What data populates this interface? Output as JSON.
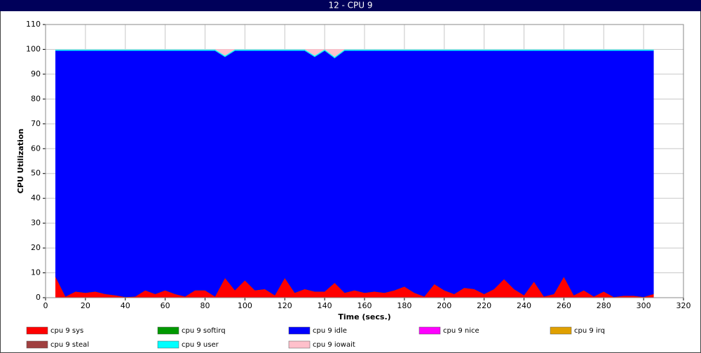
{
  "chart_data": {
    "type": "stacked-area",
    "title": "12 - CPU 9",
    "x_label": "Time (secs.)",
    "y_label": "CPU Utilization",
    "xlim": [
      0,
      320
    ],
    "xticks": [
      0,
      20,
      40,
      60,
      80,
      100,
      120,
      140,
      160,
      180,
      200,
      220,
      240,
      260,
      280,
      300,
      320
    ],
    "ylim": [
      0,
      110
    ],
    "yticks": [
      0,
      10,
      20,
      30,
      40,
      50,
      60,
      70,
      80,
      90,
      100,
      110
    ],
    "grid": true,
    "x": [
      5,
      10,
      15,
      20,
      25,
      30,
      35,
      40,
      45,
      50,
      55,
      60,
      65,
      70,
      75,
      80,
      85,
      90,
      95,
      100,
      105,
      110,
      115,
      120,
      125,
      130,
      135,
      140,
      145,
      150,
      155,
      160,
      165,
      170,
      175,
      180,
      185,
      190,
      195,
      200,
      205,
      210,
      215,
      220,
      225,
      230,
      235,
      240,
      245,
      250,
      255,
      260,
      265,
      270,
      275,
      280,
      285,
      290,
      295,
      300,
      305
    ],
    "series": [
      {
        "name": "cpu 9 sys",
        "color": "#ff0000",
        "values": [
          8.5,
          0.5,
          2.5,
          2,
          2.5,
          1.5,
          1,
          0.3,
          0.5,
          3,
          1.5,
          3,
          1.5,
          0.5,
          3,
          3,
          0.5,
          8,
          3,
          7,
          3,
          3.5,
          1,
          8,
          2,
          3.5,
          2.5,
          2.5,
          6,
          2,
          3,
          2,
          2.5,
          2,
          3,
          4.5,
          2,
          0.5,
          5.5,
          3,
          1.5,
          4,
          3.5,
          1.5,
          3.5,
          7.5,
          3.5,
          1,
          6.5,
          0.5,
          1.5,
          8.5,
          1,
          3,
          0.5,
          2.5,
          0.3,
          0.8,
          0.8,
          0.3,
          1.5
        ]
      },
      {
        "name": "cpu 9 softirq",
        "color": "#009900",
        "values": [
          0,
          0,
          0,
          0,
          0,
          0,
          0,
          0,
          0,
          0,
          0,
          0,
          0,
          0,
          0,
          0,
          0,
          0,
          0,
          0,
          0,
          0,
          0,
          0,
          0,
          0,
          0,
          0,
          0,
          0,
          0,
          0,
          0,
          0,
          0,
          0,
          0,
          0,
          0,
          0,
          0,
          0,
          0,
          0,
          0,
          0,
          0,
          0,
          0,
          0,
          0,
          0,
          0,
          0,
          0,
          0,
          0,
          0,
          0,
          0,
          0
        ]
      },
      {
        "name": "cpu 9 idle",
        "color": "#0000ff",
        "values": [
          91,
          99,
          97,
          97.5,
          97,
          98,
          98.5,
          99.2,
          99,
          96.5,
          98,
          96.5,
          98,
          99,
          96.5,
          96.5,
          99,
          89,
          96.5,
          92.5,
          96.5,
          96,
          98.5,
          91.5,
          97.5,
          96,
          94.5,
          97,
          90.5,
          97.5,
          96.5,
          97.5,
          97,
          97.5,
          96.5,
          95,
          97.5,
          99,
          94,
          96.5,
          98,
          95.5,
          96,
          98,
          96,
          92,
          96,
          98.5,
          93,
          99,
          98,
          91,
          98.5,
          96.5,
          99,
          97,
          99.2,
          98.7,
          98.7,
          99.2,
          98
        ]
      },
      {
        "name": "cpu 9 nice",
        "color": "#ff00ff",
        "values": [
          0,
          0,
          0,
          0,
          0,
          0,
          0,
          0,
          0,
          0,
          0,
          0,
          0,
          0,
          0,
          0,
          0,
          0,
          0,
          0,
          0,
          0,
          0,
          0,
          0,
          0,
          0,
          0,
          0,
          0,
          0,
          0,
          0,
          0,
          0,
          0,
          0,
          0,
          0,
          0,
          0,
          0,
          0,
          0,
          0,
          0,
          0,
          0,
          0,
          0,
          0,
          0,
          0,
          0,
          0,
          0,
          0,
          0,
          0,
          0,
          0
        ]
      },
      {
        "name": "cpu 9 irq",
        "color": "#e0a000",
        "values": [
          0,
          0,
          0,
          0,
          0,
          0,
          0,
          0,
          0,
          0,
          0,
          0,
          0,
          0,
          0,
          0,
          0,
          0,
          0,
          0,
          0,
          0,
          0,
          0,
          0,
          0,
          0,
          0,
          0,
          0,
          0,
          0,
          0,
          0,
          0,
          0,
          0,
          0,
          0,
          0,
          0,
          0,
          0,
          0,
          0,
          0,
          0,
          0,
          0,
          0,
          0,
          0,
          0,
          0,
          0,
          0,
          0,
          0,
          0,
          0,
          0
        ]
      },
      {
        "name": "cpu 9 steal",
        "color": "#a04040",
        "values": [
          0,
          0,
          0,
          0,
          0,
          0,
          0,
          0,
          0,
          0,
          0,
          0,
          0,
          0,
          0,
          0,
          0,
          0,
          0,
          0,
          0,
          0,
          0,
          0,
          0,
          0,
          0,
          0,
          0,
          0,
          0,
          0,
          0,
          0,
          0,
          0,
          0,
          0,
          0,
          0,
          0,
          0,
          0,
          0,
          0,
          0,
          0,
          0,
          0,
          0,
          0,
          0,
          0,
          0,
          0,
          0,
          0,
          0,
          0,
          0,
          0
        ]
      },
      {
        "name": "cpu 9 user",
        "color": "#00ffff",
        "values": [
          0.5,
          0.5,
          0.5,
          0.5,
          0.5,
          0.5,
          0.5,
          0.5,
          0.5,
          0.5,
          0.5,
          0.5,
          0.5,
          0.5,
          0.5,
          0.5,
          0.5,
          0.5,
          0.5,
          0.5,
          0.5,
          0.5,
          0.5,
          0.5,
          0.5,
          0.5,
          0.5,
          0.5,
          0.5,
          0.5,
          0.5,
          0.5,
          0.5,
          0.5,
          0.5,
          0.5,
          0.5,
          0.5,
          0.5,
          0.5,
          0.5,
          0.5,
          0.5,
          0.5,
          0.5,
          0.5,
          0.5,
          0.5,
          0.5,
          0.5,
          0.5,
          0.5,
          0.5,
          0.5,
          0.5,
          0.5,
          0.5,
          0.5,
          0.5,
          0.5,
          0.5
        ]
      },
      {
        "name": "cpu 9 iowait",
        "color": "#ffc0cb",
        "values": [
          0,
          0,
          0,
          0,
          0,
          0,
          0,
          0,
          0,
          0,
          0,
          0,
          0,
          0,
          0,
          0,
          0,
          2.5,
          0,
          0,
          0,
          0,
          0,
          0,
          0,
          0,
          2.5,
          0,
          3,
          0,
          0,
          0,
          0,
          0,
          0,
          0,
          0,
          0,
          0,
          0,
          0,
          0,
          0,
          0,
          0,
          0,
          0,
          0,
          0,
          0,
          0,
          0,
          0,
          0,
          0,
          0,
          0,
          0,
          0,
          0,
          0
        ]
      }
    ]
  }
}
